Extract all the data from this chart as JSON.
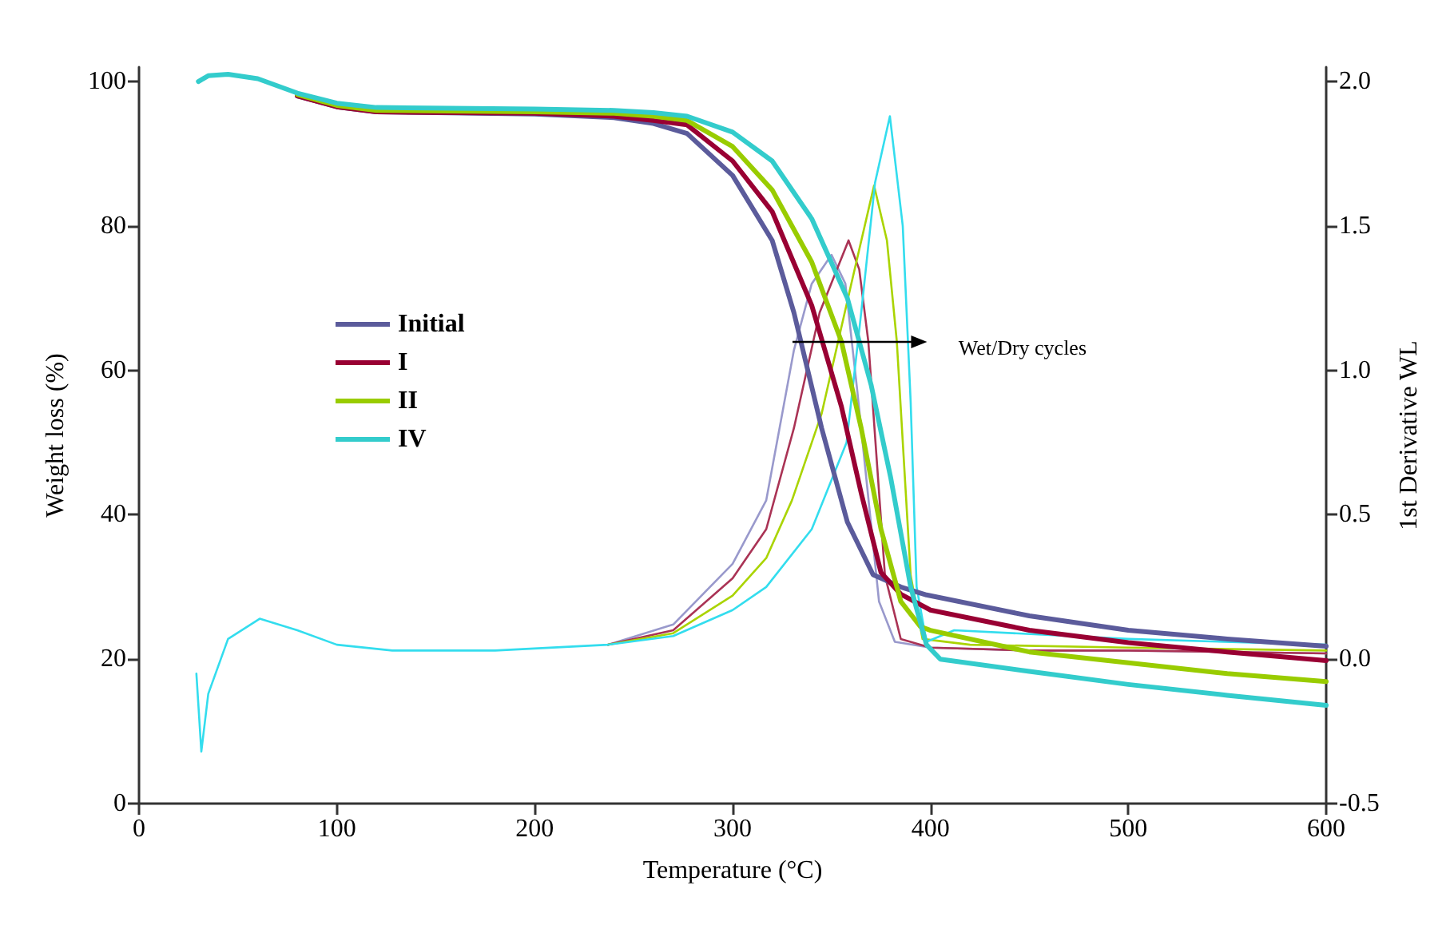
{
  "chart_data": {
    "type": "line",
    "xlabel": "Temperature (°C)",
    "ylabel": "Weight loss (%)",
    "y2label": "1st Derivative WL",
    "annotations": [
      "Wet/Dry cycles"
    ],
    "xlim": [
      0,
      600
    ],
    "xticks": [
      0,
      100,
      200,
      300,
      400,
      500,
      600
    ],
    "ylim": [
      0,
      102
    ],
    "yticks": [
      0,
      20,
      40,
      60,
      80,
      100
    ],
    "y2lim": [
      -0.5,
      2.05
    ],
    "y2ticks": [
      -0.5,
      {
        "value": 0,
        "label": "0.0"
      },
      0.5,
      {
        "value": 1,
        "label": "1.0"
      },
      1.5,
      {
        "value": 2,
        "label": "2.0"
      }
    ],
    "grid": false,
    "legend": "left",
    "marker": "none",
    "line_style": "solid",
    "series": [
      {
        "name": "Initial",
        "color": "#5b5b9b",
        "x": [
          80,
          100,
          120,
          200,
          240,
          260,
          277,
          300,
          320,
          331,
          345,
          358,
          371,
          385,
          398,
          450,
          500,
          550,
          600
        ],
        "values": [
          98,
          96.5,
          95.8,
          95.5,
          95,
          94.2,
          92.8,
          87,
          78,
          68,
          52,
          39,
          31.7,
          30,
          28.9,
          26,
          24,
          22.8,
          21.8
        ]
      },
      {
        "name": "I",
        "color": "#990033",
        "x": [
          80,
          100,
          120,
          200,
          240,
          260,
          277,
          300,
          320,
          340,
          355,
          365,
          375,
          385,
          400,
          450,
          500,
          550,
          600
        ],
        "values": [
          98,
          96.5,
          95.8,
          95.6,
          95.2,
          94.6,
          94,
          89,
          82,
          69,
          55,
          43,
          32,
          29,
          26.8,
          24,
          22.3,
          21,
          19.8
        ]
      },
      {
        "name": "II",
        "color": "#99cc00",
        "x": [
          80,
          100,
          120,
          200,
          240,
          260,
          277,
          300,
          320,
          340,
          355,
          365,
          375,
          385,
          395,
          400,
          450,
          500,
          550,
          600
        ],
        "values": [
          98.2,
          96.7,
          96,
          95.8,
          95.6,
          95.2,
          94.6,
          91,
          85,
          75,
          64,
          52,
          38,
          28,
          24.5,
          24,
          21,
          19.5,
          18,
          16.9
        ]
      },
      {
        "name": "IV",
        "color": "#33cccc",
        "x": [
          30,
          35,
          45,
          60,
          80,
          100,
          120,
          200,
          240,
          260,
          277,
          300,
          320,
          340,
          358,
          370,
          380,
          390,
          398,
          405,
          450,
          500,
          550,
          600
        ],
        "values": [
          100,
          100.8,
          101,
          100.4,
          98.4,
          97,
          96.4,
          96.2,
          96,
          95.7,
          95.2,
          93,
          89,
          81,
          70,
          58,
          45,
          30,
          22,
          20,
          18.3,
          16.5,
          15,
          13.6
        ]
      },
      {
        "color": "#9999cc",
        "axis": "y2",
        "x": [
          237,
          270,
          300,
          317,
          331,
          340,
          350,
          357,
          363,
          374,
          382,
          400,
          450,
          500,
          600
        ],
        "values": [
          0.05,
          0.12,
          0.33,
          0.55,
          1.07,
          1.3,
          1.4,
          1.3,
          0.93,
          0.2,
          0.06,
          0.04,
          0.03,
          0.03,
          0.02
        ]
      },
      {
        "color": "#aa3355",
        "axis": "y2",
        "x": [
          237,
          270,
          300,
          317,
          331,
          344,
          358.6,
          364,
          368.6,
          377,
          385,
          400,
          450,
          500,
          600
        ],
        "values": [
          0.05,
          0.1,
          0.28,
          0.45,
          0.8,
          1.2,
          1.45,
          1.35,
          1.1,
          0.29,
          0.07,
          0.04,
          0.03,
          0.03,
          0.02
        ]
      },
      {
        "color": "#aad400",
        "axis": "y2",
        "x": [
          237,
          270,
          300,
          317,
          330,
          345,
          360,
          371.5,
          378,
          383,
          390,
          396,
          420,
          500,
          600
        ],
        "values": [
          0.05,
          0.09,
          0.22,
          0.35,
          0.55,
          0.85,
          1.3,
          1.64,
          1.45,
          1.1,
          0.29,
          0.07,
          0.05,
          0.04,
          0.03
        ]
      },
      {
        "color": "#33ddee",
        "axis": "y2",
        "x": [
          29,
          31.5,
          35,
          45,
          61,
          80,
          100,
          128,
          180,
          237,
          270,
          300,
          317,
          340,
          357.6,
          365,
          372,
          379.5,
          386,
          390,
          393,
          398,
          412,
          500,
          600
        ],
        "values": [
          -0.05,
          -0.32,
          -0.12,
          0.07,
          0.14,
          0.1,
          0.05,
          0.03,
          0.03,
          0.05,
          0.08,
          0.17,
          0.25,
          0.45,
          0.75,
          1.2,
          1.65,
          1.88,
          1.5,
          0.89,
          0.25,
          0.06,
          0.1,
          0.07,
          0.05
        ]
      }
    ]
  }
}
